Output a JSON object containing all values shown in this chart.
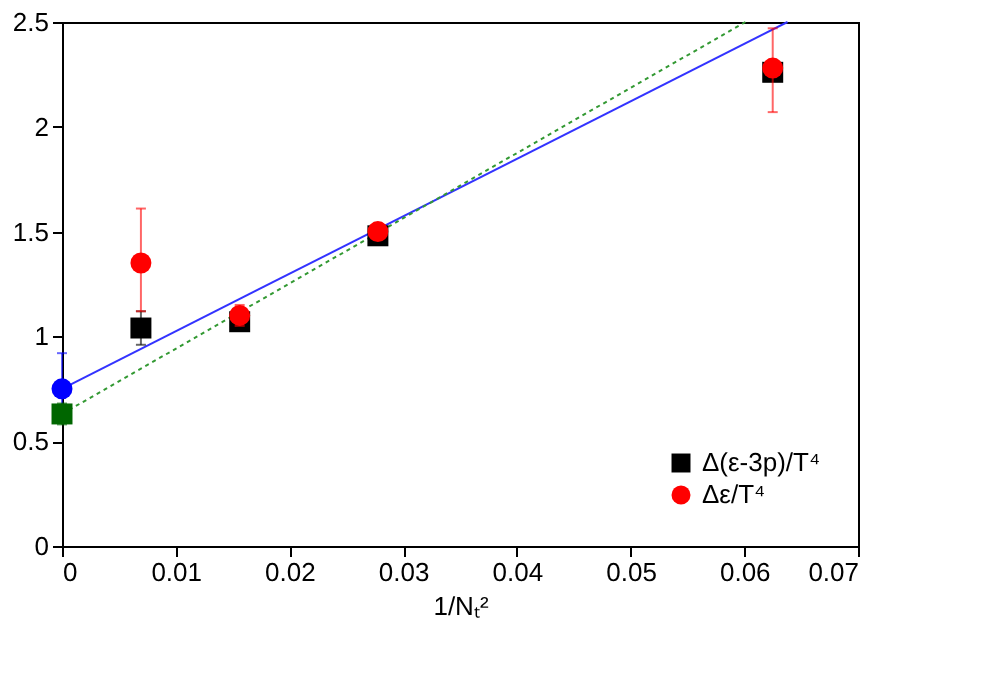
{
  "chart_data": {
    "type": "scatter",
    "xlabel": "1/Nₜ²",
    "xlim": [
      0,
      0.07
    ],
    "ylim": [
      0,
      2.5
    ],
    "xticks": [
      0,
      0.01,
      0.02,
      0.03,
      0.04,
      0.05,
      0.06,
      0.07
    ],
    "yticks": [
      0,
      0.5,
      1,
      1.5,
      2,
      2.5
    ],
    "grid": false,
    "legend": "bottom right",
    "series": [
      {
        "type": "line",
        "color": "#3333ff",
        "line_style": "solid",
        "x": [
          0,
          0.0638
        ],
        "values": [
          0.75,
          2.5
        ]
      },
      {
        "type": "line",
        "color": "#339933",
        "line_style": "dotted",
        "x": [
          0,
          0.0601
        ],
        "values": [
          0.63,
          2.5
        ]
      },
      {
        "name": "Δ(ε-3p)/T⁴",
        "color": "#000000",
        "marker": "square",
        "x": [
          0.00694,
          0.015625,
          0.02778,
          0.0625
        ],
        "values": [
          1.04,
          1.07,
          1.48,
          2.26
        ],
        "errors": [
          0.08,
          0.03,
          null,
          null
        ]
      },
      {
        "name": "Δε/T⁴",
        "color": "#ff0000",
        "marker": "circle",
        "x": [
          0.00694,
          0.015625,
          0.02778,
          0.0625
        ],
        "values": [
          1.35,
          1.1,
          1.5,
          2.28
        ],
        "errors": [
          [
            1.12,
            1.61
          ],
          0.05,
          null,
          [
            2.07,
            2.47
          ]
        ]
      },
      {
        "color": "#0000ff",
        "marker": "circle",
        "x": [
          0
        ],
        "values": [
          0.75
        ],
        "errors": [
          [
            0.66,
            0.92
          ]
        ]
      },
      {
        "color": "#006600",
        "marker": "square",
        "x": [
          0
        ],
        "values": [
          0.63
        ],
        "errors": [
          0.05
        ]
      }
    ]
  }
}
